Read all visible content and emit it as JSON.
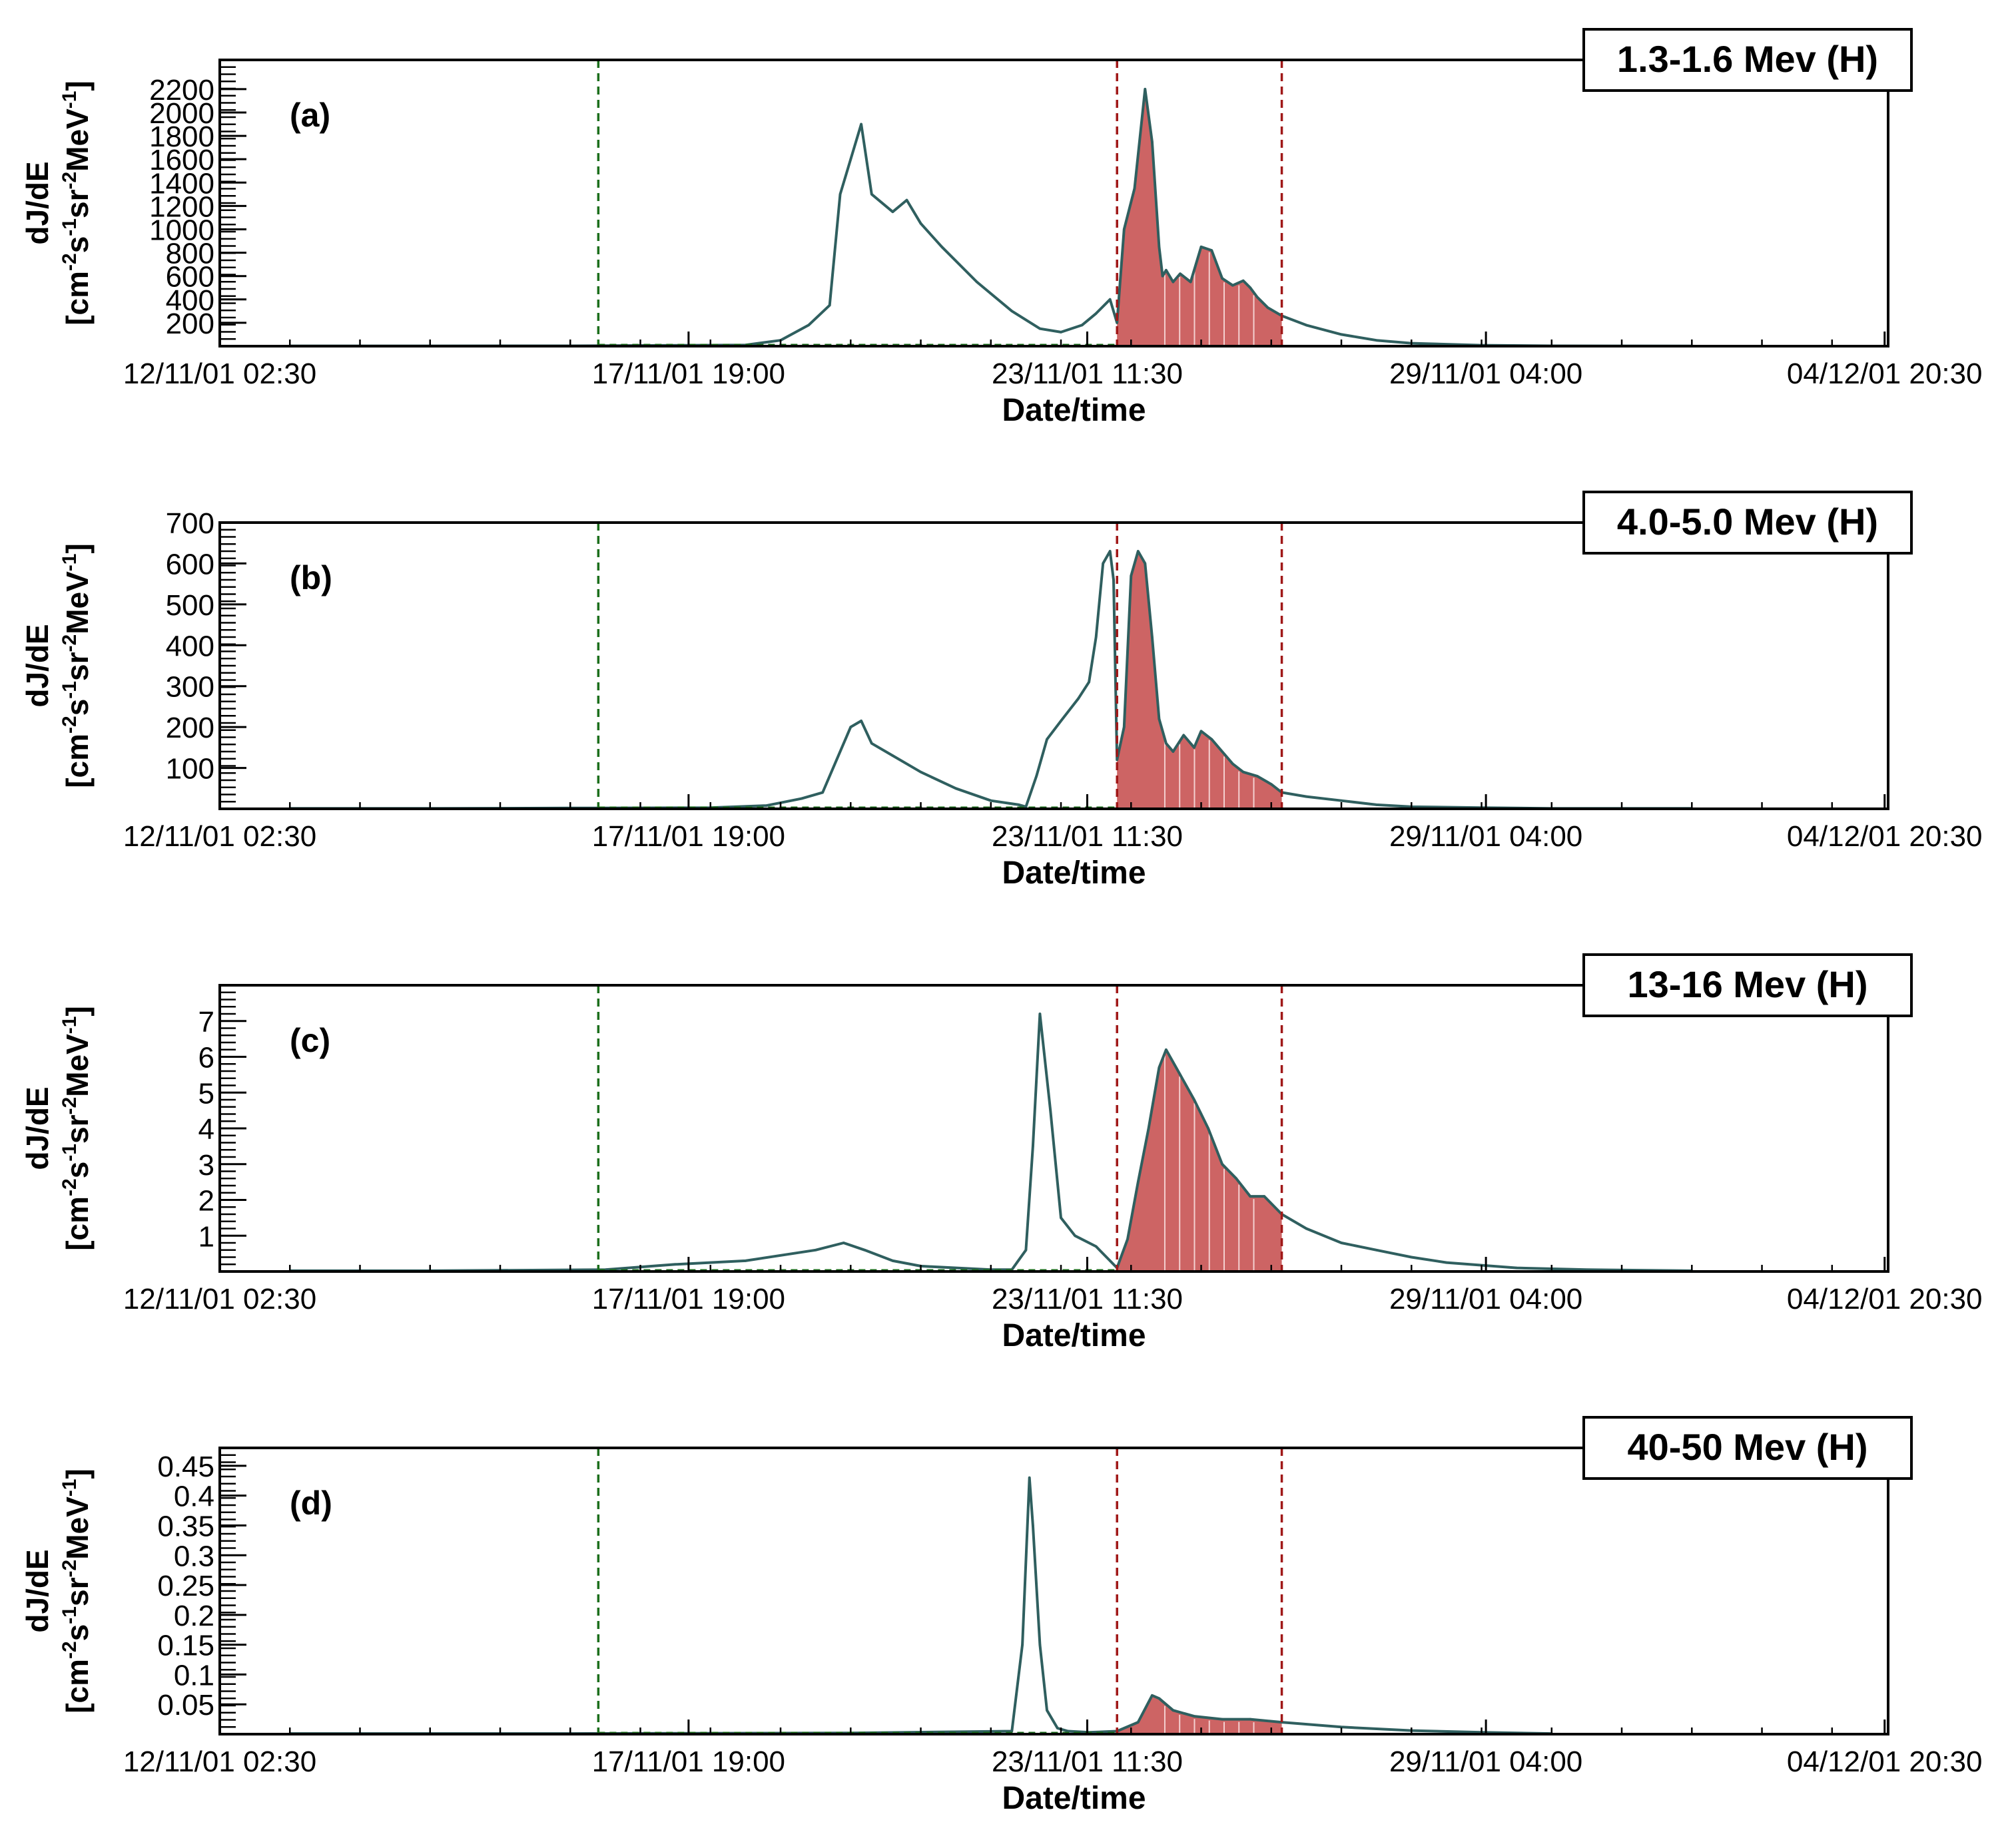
{
  "figure": {
    "xlabel": "Date/time",
    "ylabel_line1": "dJ/dE",
    "ylabel_line2_base": "[cm",
    "ylabel_exp1": "-2",
    "ylabel_mid1": "s",
    "ylabel_exp2": "-1",
    "ylabel_mid2": "sr",
    "ylabel_exp3": "-2",
    "ylabel_mid3": "MeV",
    "ylabel_exp4": "-1",
    "ylabel_end": "]",
    "x_tick_labels": [
      "12/11/01 02:30",
      "17/11/01 19:00",
      "23/11/01 11:30",
      "29/11/01 04:00",
      "04/12/01 20:30"
    ],
    "colors": {
      "series_line": "#2f5f5f",
      "shaded_fill": "#cd6464",
      "green_marker": "#1b6e1b",
      "red_marker": "#a01818"
    }
  },
  "chart_data": [
    {
      "type": "area",
      "panel_label": "(a)",
      "energy_label": "1.3-1.6 Mev (H)",
      "xlabel": "Date/time",
      "ylabel": "dJ/dE [cm^-2 s^-1 sr^-2 MeV^-1]",
      "ylim": [
        0,
        2450
      ],
      "yticks": [
        200,
        400,
        600,
        800,
        1000,
        1200,
        1400,
        1600,
        1800,
        2000,
        2200
      ],
      "ytick_labels": [
        "200",
        "400",
        "600",
        "800",
        "1000",
        "1200",
        "1400",
        "1600",
        "1800",
        "2000",
        "2200"
      ],
      "x_unit": "days since 12/11/01 02:30",
      "xlim": [
        -1,
        22.8
      ],
      "green_marker_x": 4.4,
      "red_marker_x": [
        11.8,
        14.15
      ],
      "x": [
        0,
        2,
        4,
        6.5,
        7.0,
        7.4,
        7.7,
        7.85,
        8.0,
        8.15,
        8.3,
        8.6,
        8.8,
        9.0,
        9.3,
        9.8,
        10.3,
        10.7,
        11.0,
        11.3,
        11.5,
        11.7,
        11.8,
        11.9,
        12.05,
        12.2,
        12.3,
        12.4,
        12.45,
        12.5,
        12.6,
        12.7,
        12.85,
        13.0,
        13.15,
        13.3,
        13.45,
        13.6,
        13.7,
        13.8,
        13.95,
        14.15,
        14.5,
        15.0,
        15.5,
        16.0,
        17.0,
        18.0,
        20.0
      ],
      "values": [
        2,
        2,
        3,
        10,
        50,
        180,
        350,
        1300,
        1600,
        1900,
        1300,
        1150,
        1250,
        1050,
        850,
        550,
        300,
        150,
        120,
        180,
        280,
        400,
        200,
        1000,
        1350,
        2200,
        1750,
        850,
        600,
        650,
        550,
        620,
        550,
        850,
        820,
        580,
        520,
        560,
        500,
        420,
        330,
        260,
        180,
        100,
        50,
        25,
        8,
        3,
        1
      ]
    },
    {
      "type": "area",
      "panel_label": "(b)",
      "energy_label": "4.0-5.0 Mev (H)",
      "xlabel": "Date/time",
      "ylabel": "dJ/dE [cm^-2 s^-1 sr^-2 MeV^-1]",
      "ylim": [
        0,
        700
      ],
      "yticks": [
        100,
        200,
        300,
        400,
        500,
        600,
        700
      ],
      "ytick_labels": [
        "100",
        "200",
        "300",
        "400",
        "500",
        "600",
        "700"
      ],
      "x_unit": "days since 12/11/01 02:30",
      "xlim": [
        -1,
        22.8
      ],
      "green_marker_x": 4.4,
      "red_marker_x": [
        11.8,
        14.15
      ],
      "x": [
        0,
        2,
        4,
        6.0,
        6.8,
        7.3,
        7.6,
        7.8,
        8.0,
        8.15,
        8.3,
        8.6,
        9.0,
        9.5,
        10.0,
        10.4,
        10.5,
        10.65,
        10.8,
        11.0,
        11.25,
        11.4,
        11.5,
        11.6,
        11.7,
        11.75,
        11.8,
        11.9,
        12.0,
        12.1,
        12.2,
        12.3,
        12.4,
        12.5,
        12.6,
        12.75,
        12.9,
        13.0,
        13.15,
        13.3,
        13.45,
        13.6,
        13.8,
        14.0,
        14.15,
        14.5,
        15.0,
        15.5,
        16.0,
        17.0,
        18.0,
        20.0
      ],
      "values": [
        1,
        1,
        2,
        3,
        8,
        25,
        40,
        120,
        200,
        215,
        160,
        130,
        90,
        50,
        20,
        10,
        5,
        80,
        170,
        215,
        270,
        310,
        420,
        600,
        630,
        560,
        120,
        200,
        570,
        630,
        600,
        420,
        220,
        160,
        140,
        180,
        150,
        190,
        170,
        140,
        110,
        90,
        80,
        60,
        40,
        30,
        20,
        10,
        5,
        3,
        1,
        1
      ]
    },
    {
      "type": "area",
      "panel_label": "(c)",
      "energy_label": "13-16 Mev (H)",
      "xlabel": "Date/time",
      "ylabel": "dJ/dE [cm^-2 s^-1 sr^-2 MeV^-1]",
      "ylim": [
        0,
        8
      ],
      "yticks": [
        1,
        2,
        3,
        4,
        5,
        6,
        7
      ],
      "ytick_labels": [
        "1",
        "2",
        "3",
        "4",
        "5",
        "6",
        "7"
      ],
      "x_unit": "days since 12/11/01 02:30",
      "xlim": [
        -1,
        22.8
      ],
      "green_marker_x": 4.4,
      "red_marker_x": [
        11.8,
        14.15
      ],
      "x": [
        0,
        2,
        4.5,
        5.5,
        6.5,
        7.5,
        7.9,
        8.2,
        8.6,
        9.0,
        10.0,
        10.3,
        10.5,
        10.6,
        10.7,
        10.85,
        11.0,
        11.2,
        11.5,
        11.7,
        11.8,
        11.95,
        12.1,
        12.25,
        12.4,
        12.5,
        12.7,
        12.9,
        13.1,
        13.3,
        13.5,
        13.7,
        13.9,
        14.15,
        14.5,
        15.0,
        15.5,
        16.0,
        16.5,
        17.5,
        18.5,
        20.0
      ],
      "values": [
        0.02,
        0.02,
        0.05,
        0.2,
        0.3,
        0.6,
        0.8,
        0.6,
        0.3,
        0.15,
        0.05,
        0.05,
        0.6,
        3.5,
        7.2,
        4.5,
        1.5,
        1.0,
        0.7,
        0.3,
        0.1,
        0.9,
        2.5,
        4.0,
        5.7,
        6.2,
        5.5,
        4.8,
        4.0,
        3.0,
        2.6,
        2.1,
        2.1,
        1.6,
        1.2,
        0.8,
        0.6,
        0.4,
        0.25,
        0.1,
        0.05,
        0.02
      ]
    },
    {
      "type": "area",
      "panel_label": "(d)",
      "energy_label": "40-50 Mev (H)",
      "xlabel": "Date/time",
      "ylabel": "dJ/dE [cm^-2 s^-1 sr^-2 MeV^-1]",
      "ylim": [
        0,
        0.48
      ],
      "yticks": [
        0.05,
        0.1,
        0.15,
        0.2,
        0.25,
        0.3,
        0.35,
        0.4,
        0.45
      ],
      "ytick_labels": [
        "0.05",
        "0.1",
        "0.15",
        "0.2",
        "0.25",
        "0.3",
        "0.35",
        "0.4",
        "0.45"
      ],
      "x_unit": "days since 12/11/01 02:30",
      "xlim": [
        -1,
        22.8
      ],
      "green_marker_x": 4.4,
      "red_marker_x": [
        11.8,
        14.15
      ],
      "x": [
        0,
        4,
        8,
        10.3,
        10.45,
        10.55,
        10.6,
        10.7,
        10.8,
        10.95,
        11.1,
        11.4,
        11.8,
        12.1,
        12.3,
        12.4,
        12.6,
        12.9,
        13.3,
        13.7,
        14.15,
        15.0,
        16.0,
        17.0,
        18.0
      ],
      "values": [
        0.001,
        0.001,
        0.002,
        0.005,
        0.15,
        0.43,
        0.35,
        0.15,
        0.04,
        0.01,
        0.005,
        0.003,
        0.005,
        0.02,
        0.065,
        0.06,
        0.04,
        0.03,
        0.025,
        0.025,
        0.02,
        0.012,
        0.006,
        0.003,
        0.001
      ]
    }
  ]
}
